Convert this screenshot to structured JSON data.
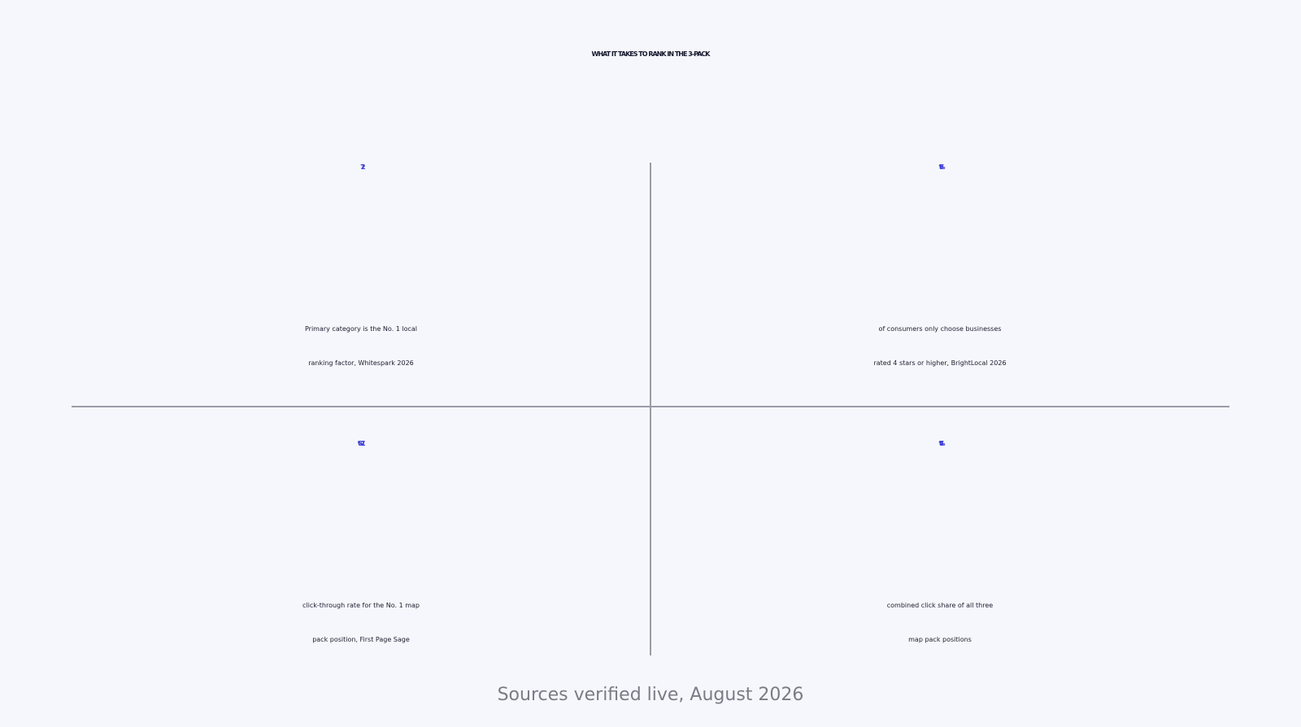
{
  "title": "WHAT IT TAKES TO RANK IN THE 3-PACK",
  "colors": {
    "background": "#f5f7fc",
    "accent": "#4141d8",
    "text": "#1a1c2c",
    "divider": "#9a9ca6"
  },
  "stats": [
    {
      "value": "227",
      "description": [
        "Primary category is the No. 1 local",
        "ranking factor, Whitespark 2026"
      ]
    },
    {
      "value": "68%",
      "description": [
        "of consumers only choose businesses",
        "rated 4 stars or higher, BrightLocal 2026"
      ]
    },
    {
      "value": "17.6%",
      "description": [
        "click-through rate for the No. 1 map",
        "pack position, First Page Sage"
      ]
    },
    {
      "value": "48%",
      "description": [
        "combined click share of all three",
        "map pack positions"
      ]
    }
  ],
  "footer": "Sources verified live, August 2026"
}
